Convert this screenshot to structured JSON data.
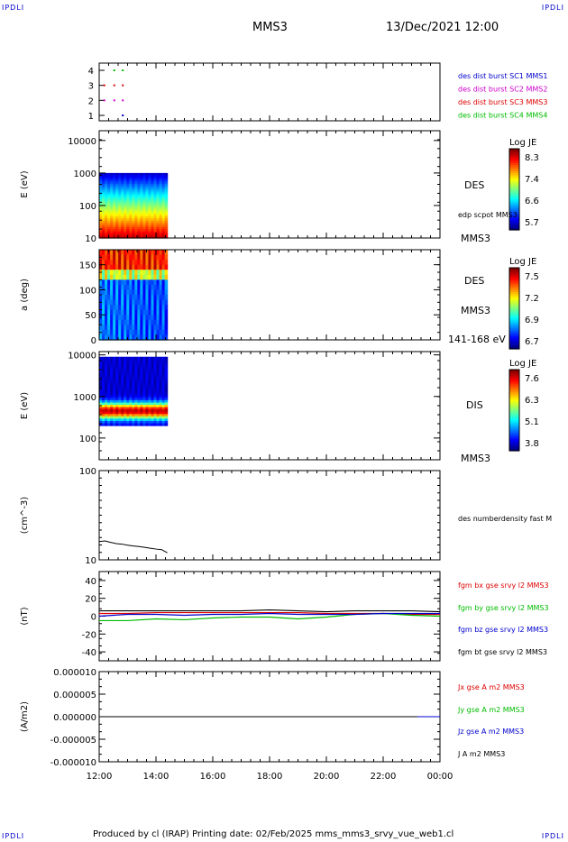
{
  "corners": {
    "tl": "IPDLI",
    "tr": "IPDLI",
    "bl": "IPDLI",
    "br": "IPDLI"
  },
  "header": {
    "spacecraft": "MMS3",
    "datetime": "13/Dec/2021 12:00"
  },
  "footer": {
    "text": "Produced by cl (IRAP)    Printing date: 02/Feb/2025    mms_mms3_srvy_vue_web1.cl"
  },
  "colors": {
    "red": "#dd0000",
    "green": "#00bb00",
    "blue": "#0000cc",
    "magenta": "#cc00cc",
    "black": "#000000"
  },
  "chart_data": [
    {
      "type": "scatter",
      "id": "availability",
      "x_ticks": [
        "12:00",
        "14:00",
        "16:00",
        "18:00",
        "20:00",
        "22:00",
        "00:00"
      ],
      "ylim": [
        1,
        4
      ],
      "y_ticks": [
        1,
        2,
        3,
        4
      ],
      "series": [
        {
          "name": "des dist burst SC1 MMS1",
          "color": "#0000cc",
          "y": 1,
          "x_hours": [
            12.8
          ]
        },
        {
          "name": "des dist burst SC2 MMS2",
          "color": "#cc00cc",
          "y": 2,
          "x_hours": [
            12.15,
            12.5,
            12.8
          ]
        },
        {
          "name": "des dist burst SC3 MMS3",
          "color": "#dd0000",
          "y": 3,
          "x_hours": [
            12.15,
            12.5,
            12.8
          ]
        },
        {
          "name": "des dist burst SC4 MMS4",
          "color": "#00bb00",
          "y": 4,
          "x_hours": [
            12.5,
            12.8
          ]
        }
      ]
    },
    {
      "type": "heatmap",
      "id": "des-energy",
      "ylabel": "E (eV)",
      "yscale": "log",
      "ylim": [
        10,
        20000
      ],
      "y_ticks": [
        "10",
        "100",
        "1000",
        "10000"
      ],
      "x_range_hours": [
        12.0,
        14.4
      ],
      "colorbar": {
        "title": "Log JE",
        "ticks": [
          "8.3",
          "7.4",
          "6.6",
          "5.7"
        ]
      },
      "right_labels": [
        "DES",
        "edp scpot MMS3",
        "MMS3"
      ]
    },
    {
      "type": "heatmap",
      "id": "des-pitch",
      "ylabel": "a (deg)",
      "ylim": [
        0,
        180
      ],
      "y_ticks": [
        "0",
        "50",
        "100",
        "150"
      ],
      "x_range_hours": [
        12.0,
        14.4
      ],
      "colorbar": {
        "title": "Log JE",
        "ticks": [
          "7.5",
          "7.2",
          "6.9",
          "6.7"
        ]
      },
      "right_labels": [
        "DES",
        "MMS3",
        "141-168 eV"
      ]
    },
    {
      "type": "heatmap",
      "id": "dis-energy",
      "ylabel": "E (eV)",
      "yscale": "log",
      "ylim": [
        30,
        12000
      ],
      "y_ticks": [
        "100",
        "1000",
        "10000"
      ],
      "x_range_hours": [
        12.0,
        14.4
      ],
      "colorbar": {
        "title": "Log JE",
        "ticks": [
          "7.6",
          "6.3",
          "5.1",
          "3.8"
        ]
      },
      "right_labels": [
        "DIS",
        "MMS3"
      ]
    },
    {
      "type": "line",
      "id": "density",
      "ylabel": "(cm^-3)",
      "yscale": "log",
      "ylim": [
        10,
        100
      ],
      "y_ticks": [
        "10",
        "100"
      ],
      "series": [
        {
          "name": "des numberdensity fast M",
          "color": "#000000",
          "x": [
            12.0,
            12.2,
            12.4,
            12.6,
            12.8,
            13.0,
            13.2,
            13.4,
            13.6,
            13.8,
            14.0,
            14.2,
            14.4
          ],
          "values": [
            16,
            16.3,
            15.7,
            15.2,
            15.0,
            14.6,
            14.3,
            14.1,
            13.8,
            13.5,
            13.2,
            13.0,
            12.0
          ]
        }
      ]
    },
    {
      "type": "line",
      "id": "fgm",
      "ylabel": "(nT)",
      "ylim": [
        -50,
        50
      ],
      "y_ticks": [
        "-40",
        "-20",
        "0",
        "20",
        "40"
      ],
      "series": [
        {
          "name": "fgm bx gse srvy l2 MMS3",
          "color": "#dd0000",
          "x": [
            12,
            13,
            14,
            15,
            16,
            17,
            18,
            19,
            20,
            21,
            22,
            23,
            24
          ],
          "values": [
            3,
            3,
            4,
            4,
            4,
            4,
            4,
            4,
            3,
            3,
            3,
            2,
            2
          ]
        },
        {
          "name": "fgm by gse srvy l2 MMS3",
          "color": "#00bb00",
          "x": [
            12,
            13,
            14,
            15,
            16,
            17,
            18,
            19,
            20,
            21,
            22,
            23,
            24
          ],
          "values": [
            -5,
            -5,
            -3,
            -4,
            -2,
            -1,
            -1,
            -3,
            -1,
            2,
            3,
            1,
            0
          ]
        },
        {
          "name": "fgm bz gse srvy l2 MMS3",
          "color": "#0000cc",
          "x": [
            12,
            13,
            14,
            15,
            16,
            17,
            18,
            19,
            20,
            21,
            22,
            23,
            24
          ],
          "values": [
            0,
            2,
            2,
            1,
            2,
            2,
            3,
            2,
            2,
            2,
            3,
            3,
            3
          ]
        },
        {
          "name": "fgm bt gse srvy l2 MMS3",
          "color": "#000000",
          "x": [
            12,
            13,
            14,
            15,
            16,
            17,
            18,
            19,
            20,
            21,
            22,
            23,
            24
          ],
          "values": [
            6,
            6,
            6,
            6,
            6,
            6,
            7,
            6,
            5,
            6,
            6,
            6,
            5
          ]
        }
      ]
    },
    {
      "type": "line",
      "id": "current",
      "ylabel": "(A/m2)",
      "ylim": [
        -1e-05,
        1e-05
      ],
      "y_ticks": [
        "-0.000010",
        "-0.000005",
        "0.000000",
        "0.000005",
        "0.000010"
      ],
      "x_ticks": [
        "12:00",
        "14:00",
        "16:00",
        "18:00",
        "20:00",
        "22:00",
        "00:00"
      ],
      "series": [
        {
          "name": "Jx gse A m2 MMS3",
          "color": "#dd0000",
          "x": [
            12,
            24
          ],
          "values": [
            0,
            0
          ]
        },
        {
          "name": "Jy gse A m2 MMS3",
          "color": "#00bb00",
          "x": [
            12,
            24
          ],
          "values": [
            0,
            0
          ]
        },
        {
          "name": "Jz gse A m2 MMS3",
          "color": "#0000cc",
          "x": [
            12,
            24
          ],
          "values": [
            0,
            0
          ]
        },
        {
          "name": "J A m2 MMS3",
          "color": "#000000",
          "x": [
            12,
            23.2
          ],
          "values": [
            0,
            0
          ]
        }
      ]
    }
  ]
}
